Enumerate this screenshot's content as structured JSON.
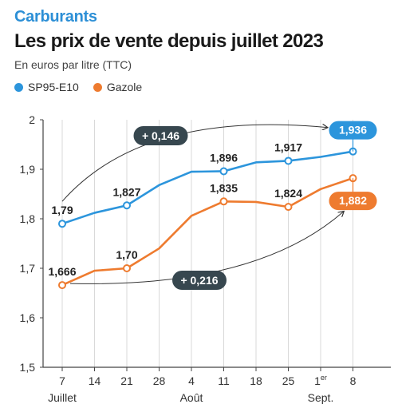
{
  "header": {
    "kicker": "Carburants",
    "title": "Les prix de vente depuis juillet 2023",
    "subtitle": "En euros par litre (TTC)"
  },
  "colors": {
    "sp95": "#2c95dc",
    "gazole": "#ee7b2f",
    "annotation_bg": "#37474f",
    "grid": "#d9d9d9"
  },
  "chart_data": {
    "type": "line",
    "categories": [
      "7",
      "14",
      "21",
      "28",
      "4",
      "11",
      "18",
      "25",
      "1er",
      "8"
    ],
    "month_labels": [
      {
        "label": "Juillet",
        "index": 0
      },
      {
        "label": "Août",
        "index": 4
      },
      {
        "label": "Sept.",
        "index": 8
      }
    ],
    "ylim": [
      1.5,
      2.0
    ],
    "yticks": [
      "1,5",
      "1,6",
      "1,7",
      "1,8",
      "1,9",
      "2"
    ],
    "ytick_values": [
      1.5,
      1.6,
      1.7,
      1.8,
      1.9,
      2.0
    ],
    "grid": "vertical",
    "legend_position": "top-left",
    "series": [
      {
        "name": "SP95-E10",
        "values": [
          1.79,
          1.812,
          1.827,
          1.868,
          1.895,
          1.896,
          1.914,
          1.917,
          1.925,
          1.936
        ],
        "labels": [
          {
            "index": 0,
            "text": "1,79"
          },
          {
            "index": 2,
            "text": "1,827"
          },
          {
            "index": 5,
            "text": "1,896"
          },
          {
            "index": 7,
            "text": "1,917"
          },
          {
            "index": 9,
            "text": "1,936"
          }
        ]
      },
      {
        "name": "Gazole",
        "values": [
          1.666,
          1.695,
          1.7,
          1.74,
          1.806,
          1.835,
          1.834,
          1.824,
          1.86,
          1.882
        ],
        "labels": [
          {
            "index": 0,
            "text": "1,666"
          },
          {
            "index": 2,
            "text": "1,70"
          },
          {
            "index": 5,
            "text": "1,835"
          },
          {
            "index": 7,
            "text": "1,824"
          },
          {
            "index": 9,
            "text": "1,882"
          }
        ]
      }
    ],
    "annotations": [
      {
        "text": "+ 0,146",
        "series": 0
      },
      {
        "text": "+ 0,216",
        "series": 1
      }
    ]
  }
}
